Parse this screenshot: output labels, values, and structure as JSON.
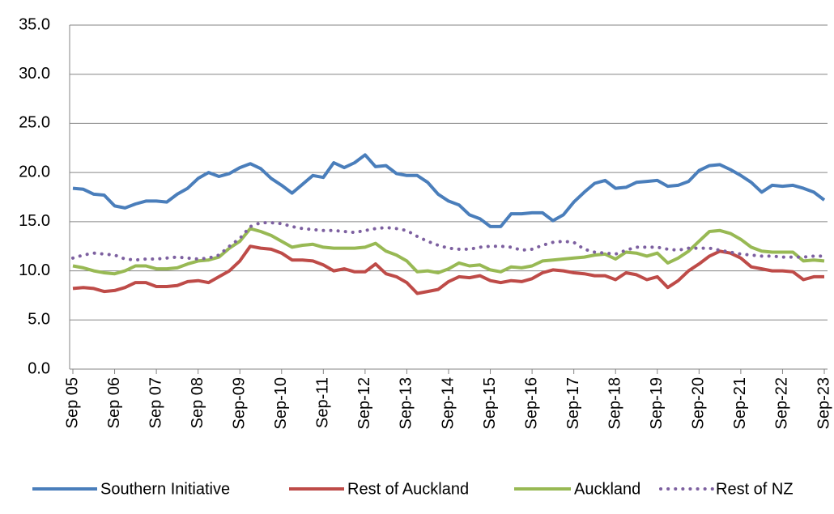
{
  "chart_data": {
    "type": "line",
    "categories": [
      "Sep 05",
      null,
      null,
      null,
      "Sep 06",
      null,
      null,
      null,
      "Sep 07",
      null,
      null,
      null,
      "Sep 08",
      null,
      null,
      null,
      "Sep-09",
      null,
      null,
      null,
      "Sep-10",
      null,
      null,
      null,
      "Sep-11",
      null,
      null,
      null,
      "Sep-12",
      null,
      null,
      null,
      "Sep-13",
      null,
      null,
      null,
      "Sep-14",
      null,
      null,
      null,
      "Sep-15",
      null,
      null,
      null,
      "Sep-16",
      null,
      null,
      null,
      "Sep-17",
      null,
      null,
      null,
      "Sep-18",
      null,
      null,
      null,
      "Sep-19",
      null,
      null,
      null,
      "Sep-20",
      null,
      null,
      null,
      "Sep-21",
      null,
      null,
      null,
      "Sep-22",
      null,
      null,
      null,
      "Sep-23"
    ],
    "series": [
      {
        "name": "Southern Initiative",
        "color": "#4a7ebb",
        "style": "solid",
        "values": [
          18.4,
          18.3,
          17.8,
          17.7,
          16.6,
          16.4,
          16.8,
          17.1,
          17.1,
          17.0,
          17.8,
          18.4,
          19.4,
          20.0,
          19.6,
          19.9,
          20.5,
          20.9,
          20.4,
          19.4,
          18.7,
          17.9,
          18.8,
          19.7,
          19.5,
          21.0,
          20.5,
          21.0,
          21.8,
          20.6,
          20.7,
          19.9,
          19.7,
          19.7,
          19.0,
          17.8,
          17.1,
          16.7,
          15.7,
          15.3,
          14.5,
          14.5,
          15.8,
          15.8,
          15.9,
          15.9,
          15.1,
          15.7,
          17.0,
          18.0,
          18.9,
          19.2,
          18.4,
          18.5,
          19.0,
          19.1,
          19.2,
          18.6,
          18.7,
          19.1,
          20.2,
          20.7,
          20.8,
          20.3,
          19.7,
          19.0,
          18.0,
          18.7,
          18.6,
          18.7,
          18.4,
          18.0,
          17.2
        ]
      },
      {
        "name": "Rest of Auckland",
        "color": "#be4b48",
        "style": "solid",
        "values": [
          8.2,
          8.3,
          8.2,
          7.9,
          8.0,
          8.3,
          8.8,
          8.8,
          8.4,
          8.4,
          8.5,
          8.9,
          9.0,
          8.8,
          9.4,
          10.0,
          11.0,
          12.5,
          12.3,
          12.2,
          11.8,
          11.1,
          11.1,
          11.0,
          10.6,
          10.0,
          10.2,
          9.9,
          9.9,
          10.7,
          9.7,
          9.4,
          8.8,
          7.7,
          7.9,
          8.1,
          8.9,
          9.4,
          9.3,
          9.5,
          9.0,
          8.8,
          9.0,
          8.9,
          9.2,
          9.8,
          10.1,
          10.0,
          9.8,
          9.7,
          9.5,
          9.5,
          9.1,
          9.8,
          9.6,
          9.1,
          9.4,
          8.3,
          9.0,
          10.0,
          10.7,
          11.5,
          12.0,
          11.8,
          11.3,
          10.4,
          10.2,
          10.0,
          10.0,
          9.9,
          9.1,
          9.4,
          9.4
        ]
      },
      {
        "name": "Auckland",
        "color": "#98b954",
        "style": "solid",
        "values": [
          10.5,
          10.3,
          10.0,
          9.8,
          9.7,
          10.0,
          10.5,
          10.5,
          10.2,
          10.2,
          10.3,
          10.7,
          11.0,
          11.1,
          11.4,
          12.3,
          13.0,
          14.3,
          14.0,
          13.6,
          13.0,
          12.4,
          12.6,
          12.7,
          12.4,
          12.3,
          12.3,
          12.3,
          12.4,
          12.8,
          12.0,
          11.6,
          11.0,
          9.9,
          10.0,
          9.8,
          10.2,
          10.8,
          10.5,
          10.6,
          10.1,
          9.9,
          10.4,
          10.3,
          10.5,
          11.0,
          11.1,
          11.2,
          11.3,
          11.4,
          11.6,
          11.7,
          11.2,
          11.9,
          11.8,
          11.5,
          11.8,
          10.8,
          11.3,
          12.0,
          13.0,
          14.0,
          14.1,
          13.8,
          13.2,
          12.4,
          12.0,
          11.9,
          11.9,
          11.9,
          11.0,
          11.1,
          11.0
        ]
      },
      {
        "name": "Rest of NZ",
        "color": "#7d60a0",
        "style": "dotted",
        "values": [
          11.3,
          11.6,
          11.8,
          11.7,
          11.6,
          11.2,
          11.1,
          11.2,
          11.2,
          11.3,
          11.4,
          11.3,
          11.2,
          11.3,
          11.6,
          12.5,
          13.3,
          14.5,
          14.9,
          14.9,
          14.8,
          14.5,
          14.3,
          14.2,
          14.1,
          14.1,
          14.0,
          13.9,
          14.1,
          14.3,
          14.4,
          14.3,
          14.1,
          13.5,
          13.0,
          12.6,
          12.3,
          12.2,
          12.2,
          12.4,
          12.5,
          12.5,
          12.4,
          12.1,
          12.2,
          12.6,
          12.9,
          13.0,
          12.9,
          12.2,
          11.9,
          11.8,
          11.7,
          12.1,
          12.4,
          12.4,
          12.4,
          12.2,
          12.1,
          12.3,
          12.3,
          12.3,
          12.1,
          11.9,
          11.7,
          11.6,
          11.5,
          11.5,
          11.4,
          11.4,
          11.4,
          11.5,
          11.5
        ]
      }
    ],
    "ylim": [
      0,
      35
    ],
    "yticks": [
      {
        "value": 0,
        "label": "0.0"
      },
      {
        "value": 5,
        "label": "5.0"
      },
      {
        "value": 10,
        "label": "10.0"
      },
      {
        "value": 15,
        "label": "15.0"
      },
      {
        "value": 20,
        "label": "20.0"
      },
      {
        "value": 25,
        "label": "25.0"
      },
      {
        "value": 30,
        "label": "30.0"
      },
      {
        "value": 35,
        "label": "35.0"
      }
    ],
    "grid": true,
    "legend": "bottom"
  }
}
